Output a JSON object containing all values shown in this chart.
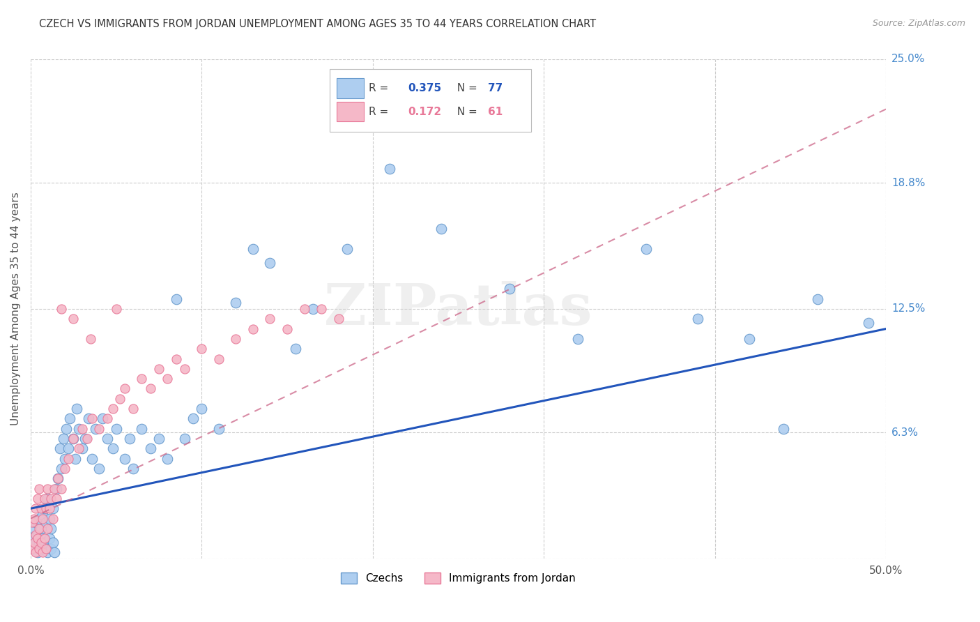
{
  "title": "CZECH VS IMMIGRANTS FROM JORDAN UNEMPLOYMENT AMONG AGES 35 TO 44 YEARS CORRELATION CHART",
  "source": "Source: ZipAtlas.com",
  "ylabel": "Unemployment Among Ages 35 to 44 years",
  "xlim": [
    0,
    0.5
  ],
  "ylim": [
    0,
    0.25
  ],
  "xticklabels": [
    "0.0%",
    "",
    "",
    "",
    "",
    "50.0%"
  ],
  "ytick_labels_right": [
    "25.0%",
    "18.8%",
    "12.5%",
    "6.3%",
    ""
  ],
  "ytick_vals_right": [
    0.25,
    0.188,
    0.125,
    0.063,
    0.0
  ],
  "watermark_text": "ZIPatlas",
  "blue_color": "#aecef0",
  "blue_edge": "#6699cc",
  "pink_color": "#f5b8c8",
  "pink_edge": "#e87898",
  "blue_line_color": "#2255bb",
  "pink_line_color": "#cc6688",
  "grid_color": "#cccccc",
  "background_color": "#ffffff",
  "title_color": "#333333",
  "right_tick_color": "#4488cc",
  "czechs_x": [
    0.001,
    0.002,
    0.002,
    0.003,
    0.003,
    0.004,
    0.004,
    0.005,
    0.005,
    0.006,
    0.006,
    0.007,
    0.007,
    0.008,
    0.008,
    0.009,
    0.009,
    0.01,
    0.01,
    0.011,
    0.011,
    0.012,
    0.012,
    0.013,
    0.013,
    0.014,
    0.015,
    0.016,
    0.017,
    0.018,
    0.019,
    0.02,
    0.021,
    0.022,
    0.023,
    0.025,
    0.026,
    0.027,
    0.028,
    0.03,
    0.032,
    0.034,
    0.036,
    0.038,
    0.04,
    0.042,
    0.045,
    0.048,
    0.05,
    0.055,
    0.058,
    0.06,
    0.065,
    0.07,
    0.075,
    0.08,
    0.085,
    0.09,
    0.095,
    0.1,
    0.11,
    0.12,
    0.13,
    0.14,
    0.155,
    0.165,
    0.185,
    0.21,
    0.24,
    0.28,
    0.32,
    0.36,
    0.39,
    0.42,
    0.44,
    0.46,
    0.49
  ],
  "czechs_y": [
    0.01,
    0.005,
    0.015,
    0.008,
    0.018,
    0.003,
    0.012,
    0.007,
    0.02,
    0.005,
    0.015,
    0.01,
    0.022,
    0.008,
    0.025,
    0.005,
    0.018,
    0.003,
    0.03,
    0.01,
    0.02,
    0.005,
    0.015,
    0.008,
    0.025,
    0.003,
    0.035,
    0.04,
    0.055,
    0.045,
    0.06,
    0.05,
    0.065,
    0.055,
    0.07,
    0.06,
    0.05,
    0.075,
    0.065,
    0.055,
    0.06,
    0.07,
    0.05,
    0.065,
    0.045,
    0.07,
    0.06,
    0.055,
    0.065,
    0.05,
    0.06,
    0.045,
    0.065,
    0.055,
    0.06,
    0.05,
    0.13,
    0.06,
    0.07,
    0.075,
    0.065,
    0.128,
    0.155,
    0.148,
    0.105,
    0.125,
    0.155,
    0.195,
    0.165,
    0.135,
    0.11,
    0.155,
    0.12,
    0.11,
    0.065,
    0.13,
    0.118
  ],
  "jordan_x": [
    0.001,
    0.001,
    0.002,
    0.002,
    0.003,
    0.003,
    0.003,
    0.004,
    0.004,
    0.005,
    0.005,
    0.005,
    0.006,
    0.006,
    0.007,
    0.007,
    0.008,
    0.008,
    0.009,
    0.009,
    0.01,
    0.01,
    0.011,
    0.012,
    0.013,
    0.014,
    0.015,
    0.016,
    0.018,
    0.02,
    0.022,
    0.025,
    0.028,
    0.03,
    0.033,
    0.036,
    0.04,
    0.045,
    0.048,
    0.052,
    0.055,
    0.06,
    0.065,
    0.07,
    0.075,
    0.08,
    0.085,
    0.09,
    0.1,
    0.11,
    0.12,
    0.13,
    0.14,
    0.15,
    0.16,
    0.17,
    0.18,
    0.018,
    0.025,
    0.035,
    0.05
  ],
  "jordan_y": [
    0.005,
    0.018,
    0.008,
    0.02,
    0.003,
    0.012,
    0.025,
    0.01,
    0.03,
    0.005,
    0.015,
    0.035,
    0.008,
    0.025,
    0.003,
    0.02,
    0.01,
    0.03,
    0.005,
    0.025,
    0.015,
    0.035,
    0.025,
    0.03,
    0.02,
    0.035,
    0.03,
    0.04,
    0.035,
    0.045,
    0.05,
    0.06,
    0.055,
    0.065,
    0.06,
    0.07,
    0.065,
    0.07,
    0.075,
    0.08,
    0.085,
    0.075,
    0.09,
    0.085,
    0.095,
    0.09,
    0.1,
    0.095,
    0.105,
    0.1,
    0.11,
    0.115,
    0.12,
    0.115,
    0.125,
    0.125,
    0.12,
    0.125,
    0.12,
    0.11,
    0.125
  ],
  "blue_line_x": [
    0.0,
    0.5
  ],
  "blue_line_y": [
    0.025,
    0.115
  ],
  "pink_line_x": [
    0.0,
    0.5
  ],
  "pink_line_y": [
    0.02,
    0.225
  ]
}
